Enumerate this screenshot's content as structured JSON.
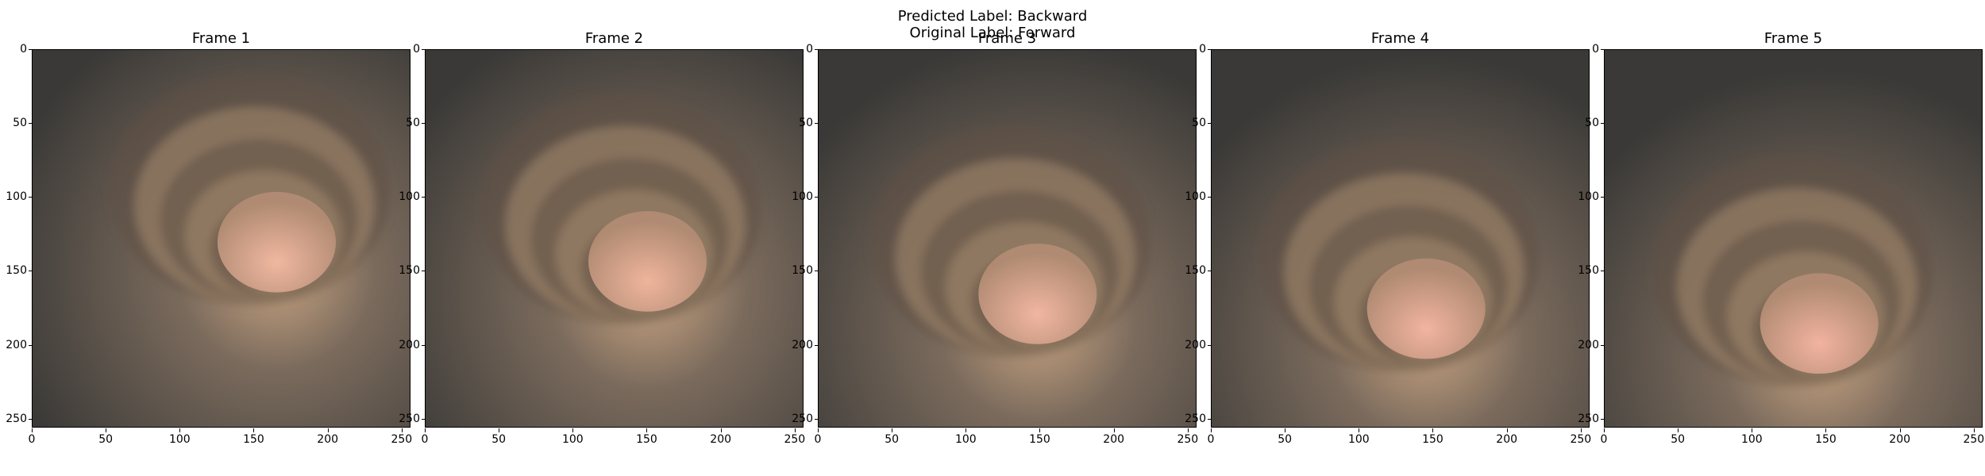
{
  "figure": {
    "title_line1": "Predicted Label: Backward",
    "title_line2": "Original Label: Forward"
  },
  "frames": [
    {
      "title": "Frame 1",
      "lumen": [
        165,
        150
      ],
      "tone": "#f0b7a0"
    },
    {
      "title": "Frame 2",
      "lumen": [
        150,
        163
      ],
      "tone": "#efb49c"
    },
    {
      "title": "Frame 3",
      "lumen": [
        148,
        185
      ],
      "tone": "#f1b6a1"
    },
    {
      "title": "Frame 4",
      "lumen": [
        145,
        195
      ],
      "tone": "#f2b4a0"
    },
    {
      "title": "Frame 5",
      "lumen": [
        145,
        205
      ],
      "tone": "#f2b3a0"
    }
  ],
  "axes": {
    "x_ticks": [
      "0",
      "50",
      "100",
      "150",
      "200",
      "250"
    ],
    "y_ticks": [
      "0",
      "50",
      "100",
      "150",
      "200",
      "250"
    ]
  },
  "colors": {
    "tissue_dark": "#3a3937",
    "tissue_mid": "#7a6a5c",
    "tissue_light": "#c8a482",
    "background": "#ffffff"
  }
}
